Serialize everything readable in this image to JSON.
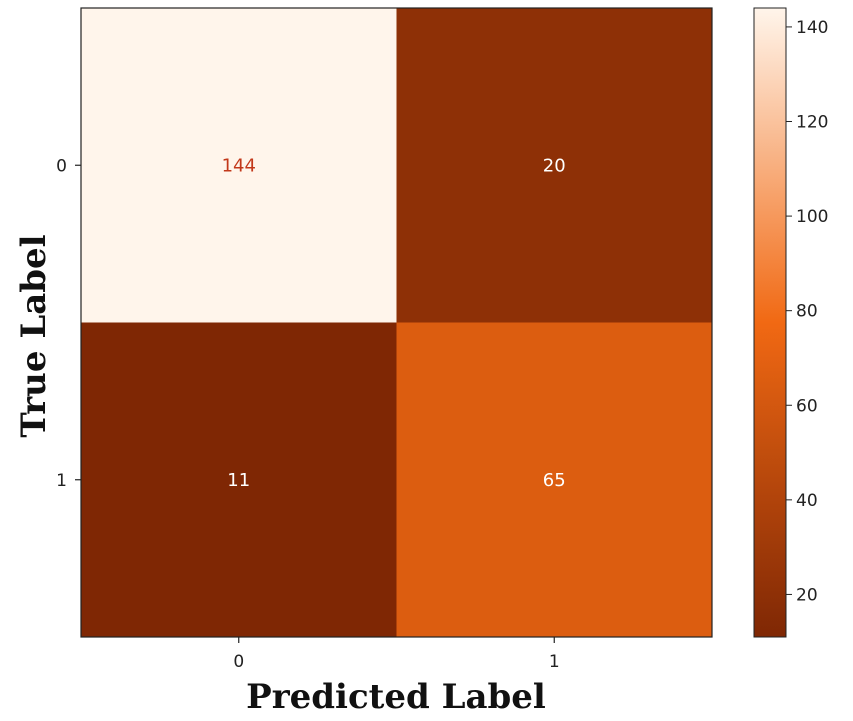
{
  "chart_data": {
    "type": "heatmap",
    "x_categories": [
      "0",
      "1"
    ],
    "y_categories": [
      "0",
      "1"
    ],
    "values": [
      [
        144,
        20
      ],
      [
        11,
        65
      ]
    ],
    "xlabel": "Predicted Label",
    "ylabel": "True Label",
    "colorbar": {
      "min": 11,
      "max": 144,
      "ticks": [
        20,
        40,
        60,
        80,
        100,
        120,
        140
      ]
    },
    "colormap": "Oranges_r",
    "colors": {
      "low": "#7f2704",
      "mid": "#f16913",
      "high": "#fff5eb",
      "label_on_light": "#c2381a",
      "label_on_dark": "#ffffff"
    },
    "grid": false
  }
}
